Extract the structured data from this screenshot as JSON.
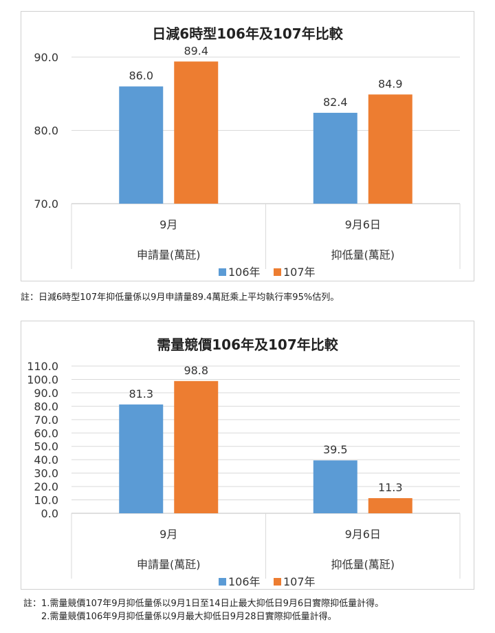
{
  "chart_data": [
    {
      "type": "bar",
      "title": "日減6時型106年及107年比較",
      "groups": [
        {
          "category": "9月",
          "label": "申請量(萬瓩)"
        },
        {
          "category": "9月6日",
          "label": "抑低量(萬瓩)"
        }
      ],
      "series": [
        {
          "name": "106年",
          "values": [
            86.0,
            82.4
          ],
          "value_labels": [
            "86.0",
            "82.4"
          ],
          "color": "#5b9bd5"
        },
        {
          "name": "107年",
          "values": [
            89.4,
            84.9
          ],
          "value_labels": [
            "89.4",
            "84.9"
          ],
          "color": "#ed7d31"
        }
      ],
      "ylim": [
        70,
        90
      ],
      "y_ticks": [
        "70.0",
        "80.0",
        "90.0"
      ],
      "legend": "bottom",
      "grid": true
    },
    {
      "type": "bar",
      "title": "需量競價106年及107年比較",
      "groups": [
        {
          "category": "9月",
          "label": "申請量(萬瓩)"
        },
        {
          "category": "9月6日",
          "label": "抑低量(萬瓩)"
        }
      ],
      "series": [
        {
          "name": "106年",
          "values": [
            81.3,
            39.5
          ],
          "value_labels": [
            "81.3",
            "39.5"
          ],
          "color": "#5b9bd5"
        },
        {
          "name": "107年",
          "values": [
            98.8,
            11.3
          ],
          "value_labels": [
            "98.8",
            "11.3"
          ],
          "color": "#ed7d31"
        }
      ],
      "ylim": [
        0,
        110
      ],
      "y_ticks": [
        "0.0",
        "10.0",
        "20.0",
        "30.0",
        "40.0",
        "50.0",
        "60.0",
        "70.0",
        "80.0",
        "90.0",
        "100.0",
        "110.0"
      ],
      "legend": "bottom",
      "grid": true
    }
  ],
  "notes": {
    "note1": "註：日減6時型107年抑低量係以9月申請量89.4萬瓩乘上平均執行率95%估列。",
    "note2_line1": "註：1.需量競價107年9月抑低量係以9月1日至14日止最大抑低日9月6日實際抑低量計得。",
    "note2_line2": "2.需量競價106年9月抑低量係以9月最大抑低日9月28日實際抑低量計得。"
  }
}
